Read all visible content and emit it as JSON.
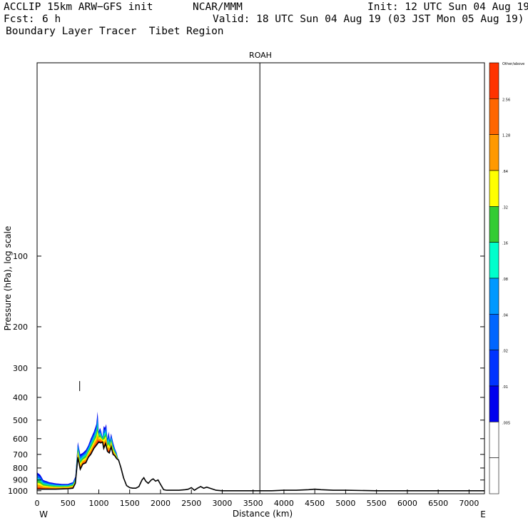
{
  "header": {
    "model": "ACCLIP 15km ARW−GFS init",
    "org": "NCAR/MMM",
    "init": "Init: 12 UTC Sun 04 Aug 19",
    "fcst_label": "Fcst:",
    "fcst_value": "6 h",
    "valid": "Valid: 18 UTC Sun 04 Aug 19 (03 JST Mon 05 Aug 19)",
    "subtitle": "Boundary Layer Tracer  Tibet Region"
  },
  "chart_data": {
    "type": "area",
    "title": "ROAH",
    "xlabel": "Distance (km)",
    "ylabel": "Pressure (hPa), log scale",
    "xlim": [
      0,
      7250
    ],
    "ylim": [
      1030,
      15
    ],
    "y_scale": "log",
    "x_ticks": [
      0,
      500,
      1000,
      1500,
      2000,
      2500,
      3000,
      3500,
      4000,
      4500,
      5000,
      5500,
      6000,
      6500,
      7000
    ],
    "y_ticks": [
      100,
      200,
      300,
      400,
      500,
      600,
      700,
      800,
      900,
      1000
    ],
    "x_end_labels": {
      "left": "W",
      "right": "E"
    },
    "vertical_line_x": 3610,
    "grid": false,
    "terrain_profile": {
      "x": [
        0,
        100,
        300,
        500,
        580,
        620,
        660,
        700,
        740,
        790,
        830,
        870,
        920,
        960,
        1000,
        1030,
        1060,
        1080,
        1110,
        1140,
        1170,
        1200,
        1230,
        1260,
        1290,
        1320,
        1360,
        1400,
        1450,
        1500,
        1550,
        1600,
        1650,
        1700,
        1730,
        1760,
        1800,
        1850,
        1880,
        1920,
        1960,
        2000,
        2050,
        2100,
        2150,
        2200,
        2300,
        2400,
        2450,
        2500,
        2550,
        2600,
        2650,
        2700,
        2750,
        2800,
        2850,
        2900,
        3000,
        3200,
        3400,
        3600,
        3800,
        4000,
        4200,
        4400,
        4500,
        4600,
        4800,
        5000,
        5500,
        6000,
        6500,
        7000,
        7250
      ],
      "pressure": [
        985,
        985,
        985,
        980,
        975,
        930,
        720,
        810,
        770,
        760,
        720,
        700,
        660,
        640,
        620,
        625,
        620,
        660,
        630,
        680,
        690,
        650,
        700,
        710,
        730,
        740,
        800,
        880,
        950,
        970,
        975,
        975,
        960,
        900,
        880,
        910,
        930,
        900,
        890,
        910,
        900,
        940,
        990,
        995,
        995,
        995,
        995,
        990,
        985,
        970,
        995,
        975,
        960,
        975,
        965,
        975,
        985,
        995,
        1000,
        1000,
        1000,
        1000,
        1000,
        995,
        995,
        990,
        985,
        990,
        995,
        995,
        1000,
        1000,
        1000,
        1000,
        1000
      ]
    },
    "tracer_top": {
      "x": [
        0,
        50,
        100,
        200,
        300,
        400,
        500,
        580,
        620,
        660,
        700,
        740,
        790,
        830,
        870,
        920,
        960,
        980,
        1000,
        1020,
        1040,
        1060,
        1080,
        1100,
        1120,
        1140,
        1160,
        1180,
        1200,
        1230,
        1260,
        1290,
        1320
      ],
      "pressure": [
        835,
        855,
        900,
        920,
        930,
        935,
        935,
        920,
        870,
        620,
        700,
        690,
        670,
        640,
        600,
        560,
        520,
        460,
        560,
        540,
        560,
        590,
        530,
        540,
        520,
        600,
        560,
        610,
        570,
        620,
        660,
        690,
        740
      ]
    },
    "tracer_marker": {
      "x": 690,
      "pressure": 358
    },
    "colorbar": {
      "labels": [
        "Other/above",
        "2.56",
        "1.28",
        ".64",
        ".32",
        ".16",
        ".08",
        ".04",
        ".02",
        ".01",
        ".005",
        ""
      ],
      "colors": [
        "#ff3300",
        "#ff6600",
        "#ff9900",
        "#ffff00",
        "#33cc33",
        "#00ffcc",
        "#0099ff",
        "#0066ff",
        "#0033ff",
        "#0000ee",
        "#ffffff",
        "#ffffff"
      ]
    }
  }
}
